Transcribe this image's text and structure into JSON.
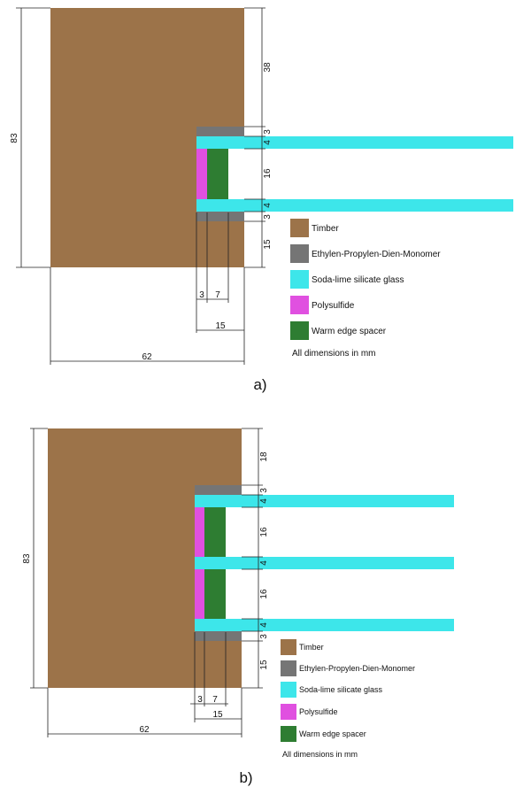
{
  "legend": {
    "timber": "Timber",
    "epdm": "Ethylen-Propylen-Dien-Monomer",
    "glass": "Soda-lime silicate glass",
    "polysulfide": "Polysulfide",
    "spacer": "Warm edge spacer",
    "note": "All dimensions in mm"
  },
  "colors": {
    "timber": "#9c7349",
    "epdm": "#757575",
    "glass": "#3de6ea",
    "polysulfide": "#e050e0",
    "spacer": "#2e7d32"
  },
  "figure_a": {
    "caption": "a)",
    "dims": {
      "height_total": "83",
      "top": "38",
      "epdm_top": "3",
      "glass1": "4",
      "cavity": "16",
      "glass2": "4",
      "epdm_bottom": "3",
      "bottom": "15",
      "poly_w": "3",
      "spacer_w": "7",
      "bottom_w": "15",
      "width_total": "62"
    }
  },
  "figure_b": {
    "caption": "b)",
    "dims": {
      "height_total": "83",
      "top": "18",
      "epdm_top": "3",
      "glass1": "4",
      "cavity1": "16",
      "glass2": "4",
      "cavity2": "16",
      "glass3": "4",
      "epdm_bottom": "3",
      "bottom": "15",
      "poly_w": "3",
      "spacer_w": "7",
      "bottom_w": "15",
      "width_total": "62"
    }
  }
}
